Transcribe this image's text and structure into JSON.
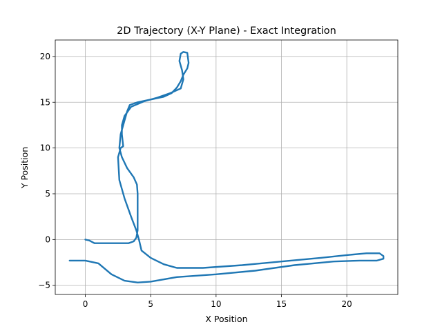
{
  "chart_data": {
    "type": "line",
    "title": "2D Trajectory (X-Y Plane) - Exact Integration",
    "xlabel": "X Position",
    "ylabel": "Y Position",
    "xlim": [
      -2.3,
      23.9
    ],
    "ylim": [
      -6.0,
      21.8
    ],
    "xticks": [
      0,
      5,
      10,
      15,
      20
    ],
    "yticks": [
      -5,
      0,
      5,
      10,
      15,
      20
    ],
    "grid": true,
    "series": [
      {
        "color": "#1f77b4",
        "x": [
          0.0,
          0.3,
          0.7,
          1.5,
          2.5,
          3.3,
          3.7,
          3.9,
          4.0,
          4.0,
          4.0,
          3.95,
          3.7,
          3.2,
          2.8,
          2.6,
          2.7,
          3.0,
          3.2,
          3.4,
          4.0,
          5.0,
          6.0,
          6.6,
          7.0,
          7.3,
          7.5,
          7.8,
          7.9,
          7.8,
          7.5,
          7.3,
          7.2,
          7.4,
          7.5,
          7.3,
          6.5,
          5.5,
          4.5,
          3.5,
          3.0,
          2.8,
          2.8,
          2.9,
          2.7,
          2.5,
          2.6,
          3.0,
          3.5,
          3.9,
          4.1,
          4.3,
          5.0,
          6.0,
          7.0,
          9.0,
          12.0,
          15.0,
          18.0,
          20.0,
          21.5,
          22.5,
          22.8,
          22.8,
          22.3,
          21.0,
          19.0,
          16.0,
          13.0,
          10.0,
          7.0,
          5.0,
          4.0,
          3.0,
          2.0,
          1.0,
          0.0,
          -1.2
        ],
        "y": [
          0.0,
          -0.1,
          -0.4,
          -0.4,
          -0.4,
          -0.4,
          -0.2,
          0.2,
          1.0,
          3.0,
          5.0,
          6.0,
          6.8,
          7.8,
          9.0,
          10.0,
          11.5,
          13.0,
          14.0,
          14.7,
          15.0,
          15.3,
          15.6,
          16.0,
          16.6,
          17.3,
          18.0,
          18.7,
          19.3,
          20.4,
          20.5,
          20.3,
          19.5,
          18.5,
          17.5,
          16.5,
          16.0,
          15.5,
          15.1,
          14.5,
          13.5,
          12.5,
          11.5,
          10.2,
          10.0,
          9.0,
          6.5,
          4.5,
          2.5,
          1.0,
          0.0,
          -1.2,
          -2.0,
          -2.7,
          -3.1,
          -3.1,
          -2.8,
          -2.4,
          -2.0,
          -1.7,
          -1.5,
          -1.5,
          -1.8,
          -2.1,
          -2.3,
          -2.3,
          -2.4,
          -2.8,
          -3.4,
          -3.8,
          -4.1,
          -4.6,
          -4.7,
          -4.5,
          -3.8,
          -2.6,
          -2.3,
          -2.3
        ]
      }
    ]
  }
}
